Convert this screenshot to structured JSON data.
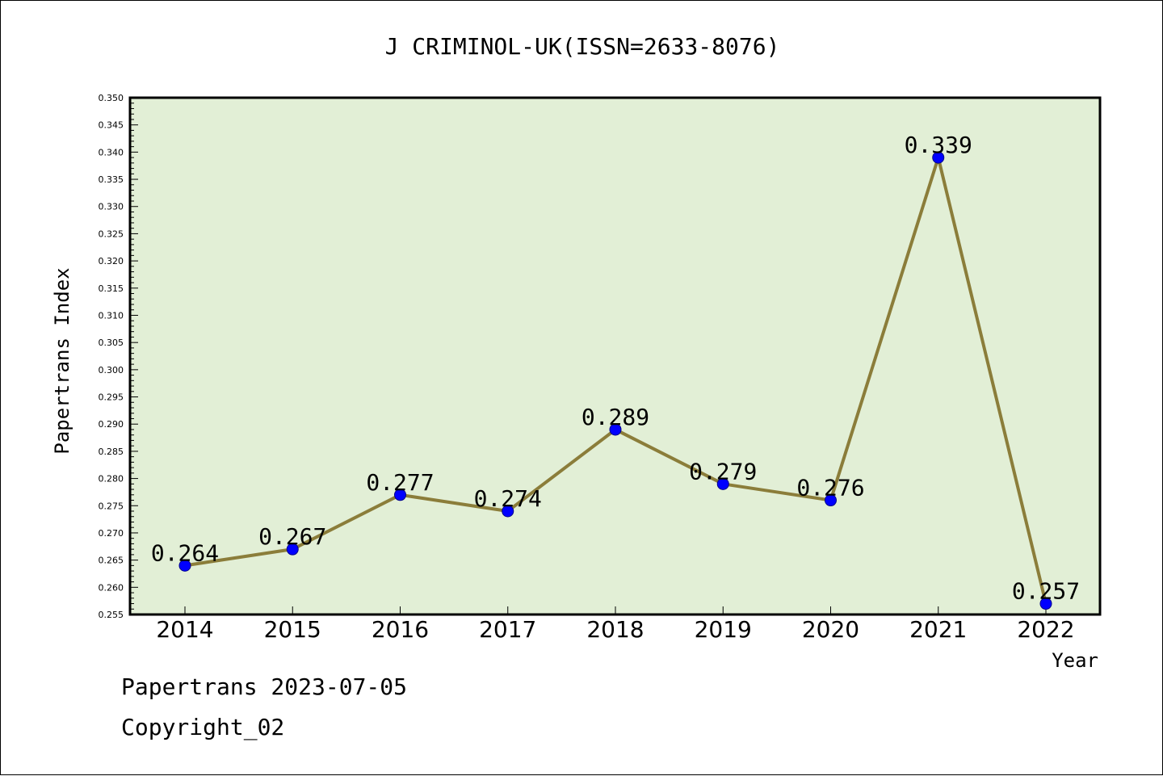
{
  "chart_data": {
    "type": "line",
    "title": "J CRIMINOL-UK(ISSN=2633-8076)",
    "xlabel": "Year",
    "ylabel": "Papertrans Index",
    "categories": [
      "2014",
      "2015",
      "2016",
      "2017",
      "2018",
      "2019",
      "2020",
      "2021",
      "2022"
    ],
    "values": [
      0.264,
      0.267,
      0.277,
      0.274,
      0.289,
      0.279,
      0.276,
      0.339,
      0.257
    ],
    "data_labels": [
      "0.264",
      "0.267",
      "0.277",
      "0.274",
      "0.289",
      "0.279",
      "0.276",
      "0.339",
      "0.257"
    ],
    "ylim": [
      0.255,
      0.35
    ],
    "yticks": [
      "0.255",
      "0.260",
      "0.265",
      "0.270",
      "0.275",
      "0.280",
      "0.285",
      "0.290",
      "0.295",
      "0.300",
      "0.305",
      "0.310",
      "0.315",
      "0.320",
      "0.325",
      "0.330",
      "0.335",
      "0.340",
      "0.345",
      "0.350"
    ],
    "grid": false,
    "legend": "none",
    "colors": {
      "plot_background": "#e2efd6",
      "line": "#8b7d3a",
      "marker": "#0000ff",
      "marker_edge": "#00008b"
    }
  },
  "footer": {
    "date_line": "Papertrans 2023-07-05",
    "copyright": "Copyright_02"
  }
}
